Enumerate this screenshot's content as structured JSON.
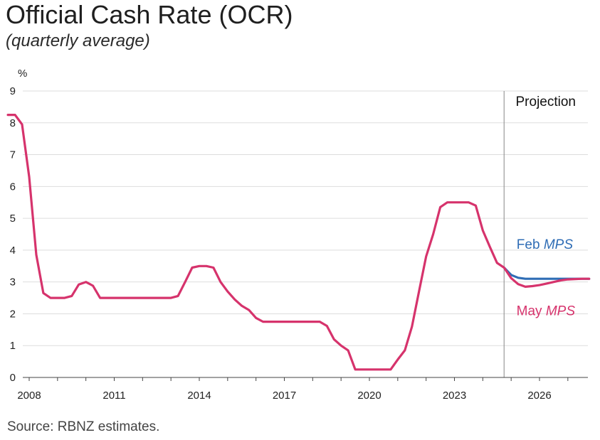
{
  "chart_data": {
    "type": "line",
    "title": "Official Cash Rate (OCR)",
    "subtitle": "(quarterly average)",
    "ylabel": "%",
    "xlabel": "",
    "ylim": [
      0,
      9
    ],
    "xlim": [
      2007.25,
      2028
    ],
    "yticks": [
      0,
      1,
      2,
      3,
      4,
      5,
      6,
      7,
      8,
      9
    ],
    "xticks": [
      2008,
      2011,
      2014,
      2017,
      2020,
      2023,
      2026
    ],
    "grid": true,
    "source": "Source: RBNZ estimates.",
    "projection_start": 2024.75,
    "projection_label": "Projection",
    "series": [
      {
        "name": "May MPS",
        "color": "#d6336c",
        "x": [
          2007.25,
          2007.5,
          2007.75,
          2008.0,
          2008.25,
          2008.5,
          2008.75,
          2009.0,
          2009.25,
          2009.5,
          2009.75,
          2010.0,
          2010.25,
          2010.5,
          2010.75,
          2011.0,
          2011.25,
          2011.5,
          2011.75,
          2012.0,
          2012.25,
          2012.5,
          2012.75,
          2013.0,
          2013.25,
          2013.5,
          2013.75,
          2014.0,
          2014.25,
          2014.5,
          2014.75,
          2015.0,
          2015.25,
          2015.5,
          2015.75,
          2016.0,
          2016.25,
          2016.5,
          2016.75,
          2017.0,
          2017.25,
          2017.5,
          2017.75,
          2018.0,
          2018.25,
          2018.5,
          2018.75,
          2019.0,
          2019.25,
          2019.5,
          2019.75,
          2020.0,
          2020.25,
          2020.5,
          2020.75,
          2021.0,
          2021.25,
          2021.5,
          2021.75,
          2022.0,
          2022.25,
          2022.5,
          2022.75,
          2023.0,
          2023.25,
          2023.5,
          2023.75,
          2024.0,
          2024.25,
          2024.5,
          2024.75,
          2025.0,
          2025.25,
          2025.5,
          2025.75,
          2026.0,
          2026.25,
          2026.5,
          2026.75,
          2027.0,
          2027.25,
          2027.5,
          2027.75
        ],
        "values": [
          8.25,
          8.25,
          7.95,
          6.3,
          3.85,
          2.65,
          2.5,
          2.5,
          2.5,
          2.56,
          2.92,
          3.0,
          2.88,
          2.5,
          2.5,
          2.5,
          2.5,
          2.5,
          2.5,
          2.5,
          2.5,
          2.5,
          2.5,
          2.5,
          2.56,
          3.0,
          3.45,
          3.5,
          3.5,
          3.45,
          3.0,
          2.7,
          2.45,
          2.25,
          2.12,
          1.87,
          1.75,
          1.75,
          1.75,
          1.75,
          1.75,
          1.75,
          1.75,
          1.75,
          1.75,
          1.62,
          1.2,
          1.0,
          0.85,
          0.25,
          0.25,
          0.25,
          0.25,
          0.25,
          0.25,
          0.56,
          0.85,
          1.6,
          2.7,
          3.8,
          4.5,
          5.35,
          5.5,
          5.5,
          5.5,
          5.5,
          5.4,
          4.62,
          4.1,
          3.6,
          3.45,
          3.12,
          2.93,
          2.85,
          2.87,
          2.9,
          2.95,
          3.0,
          3.05,
          3.08,
          3.09,
          3.1,
          3.1
        ]
      },
      {
        "name": "Feb MPS",
        "color": "#2f6db5",
        "x": [
          2024.75,
          2025.0,
          2025.25,
          2025.5,
          2025.75,
          2026.0,
          2026.25,
          2026.5,
          2026.75,
          2027.0,
          2027.25,
          2027.5,
          2027.75
        ],
        "values": [
          3.45,
          3.22,
          3.13,
          3.1,
          3.1,
          3.1,
          3.1,
          3.1,
          3.1,
          3.1,
          3.1,
          3.1,
          3.1
        ]
      }
    ],
    "labels": {
      "feb": {
        "prefix": "Feb",
        "italic": "MPS"
      },
      "may": {
        "prefix": "May",
        "italic": "MPS"
      }
    }
  }
}
